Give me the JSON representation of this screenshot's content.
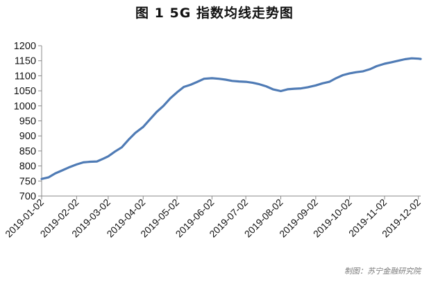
{
  "chart_data": {
    "type": "line",
    "title": "图 1   5G 指数均线走势图",
    "xlabel": "",
    "ylabel": "",
    "ylim": [
      700,
      1200
    ],
    "yticks": [
      700,
      750,
      800,
      850,
      900,
      950,
      1000,
      1050,
      1100,
      1150,
      1200
    ],
    "xlim": [
      "2019-01-02",
      "2019-12-04"
    ],
    "xticks": [
      "2019-01-02",
      "2019-02-02",
      "2019-03-02",
      "2019-04-02",
      "2019-05-02",
      "2019-06-02",
      "2019-07-02",
      "2019-08-02",
      "2019-09-02",
      "2019-10-02",
      "2019-11-02",
      "2019-12-02"
    ],
    "grid": false,
    "legend": "none",
    "series": [
      {
        "color": "#4f7bb5",
        "points": [
          [
            "2019-01-02",
            757
          ],
          [
            "2019-01-08",
            762
          ],
          [
            "2019-01-14",
            775
          ],
          [
            "2019-01-20",
            785
          ],
          [
            "2019-01-26",
            795
          ],
          [
            "2019-02-02",
            805
          ],
          [
            "2019-02-08",
            812
          ],
          [
            "2019-02-14",
            814
          ],
          [
            "2019-02-20",
            815
          ],
          [
            "2019-02-26",
            825
          ],
          [
            "2019-03-02",
            832
          ],
          [
            "2019-03-08",
            848
          ],
          [
            "2019-03-14",
            862
          ],
          [
            "2019-03-20",
            887
          ],
          [
            "2019-03-26",
            910
          ],
          [
            "2019-04-02",
            930
          ],
          [
            "2019-04-08",
            955
          ],
          [
            "2019-04-14",
            980
          ],
          [
            "2019-04-20",
            1000
          ],
          [
            "2019-04-26",
            1025
          ],
          [
            "2019-05-02",
            1045
          ],
          [
            "2019-05-08",
            1063
          ],
          [
            "2019-05-14",
            1070
          ],
          [
            "2019-05-20",
            1080
          ],
          [
            "2019-05-26",
            1090
          ],
          [
            "2019-06-02",
            1092
          ],
          [
            "2019-06-08",
            1090
          ],
          [
            "2019-06-14",
            1087
          ],
          [
            "2019-06-20",
            1083
          ],
          [
            "2019-06-26",
            1081
          ],
          [
            "2019-07-02",
            1080
          ],
          [
            "2019-07-08",
            1077
          ],
          [
            "2019-07-14",
            1072
          ],
          [
            "2019-07-20",
            1065
          ],
          [
            "2019-07-26",
            1055
          ],
          [
            "2019-08-02",
            1049
          ],
          [
            "2019-08-08",
            1055
          ],
          [
            "2019-08-14",
            1057
          ],
          [
            "2019-08-20",
            1058
          ],
          [
            "2019-08-26",
            1062
          ],
          [
            "2019-09-02",
            1068
          ],
          [
            "2019-09-08",
            1075
          ],
          [
            "2019-09-14",
            1080
          ],
          [
            "2019-09-20",
            1092
          ],
          [
            "2019-09-26",
            1102
          ],
          [
            "2019-10-02",
            1108
          ],
          [
            "2019-10-08",
            1112
          ],
          [
            "2019-10-14",
            1115
          ],
          [
            "2019-10-20",
            1122
          ],
          [
            "2019-10-26",
            1132
          ],
          [
            "2019-11-02",
            1140
          ],
          [
            "2019-11-08",
            1145
          ],
          [
            "2019-11-14",
            1150
          ],
          [
            "2019-11-20",
            1155
          ],
          [
            "2019-11-26",
            1158
          ],
          [
            "2019-12-02",
            1157
          ],
          [
            "2019-12-04",
            1156
          ]
        ]
      }
    ]
  },
  "credit": "制图：苏宁金融研究院"
}
